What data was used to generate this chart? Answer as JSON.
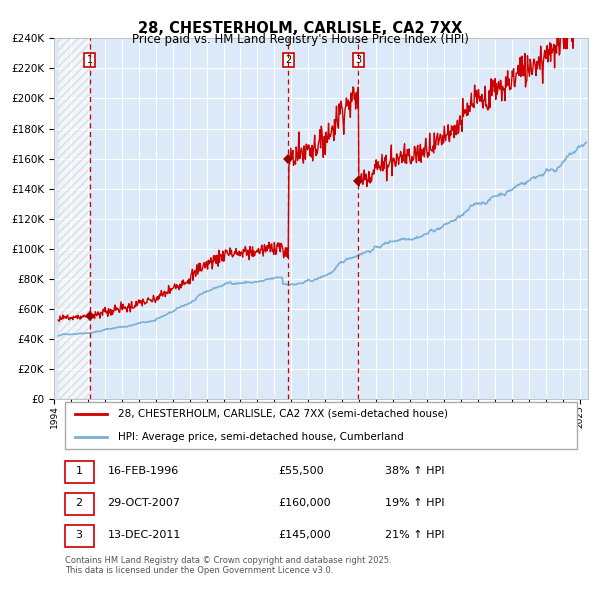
{
  "title": "28, CHESTERHOLM, CARLISLE, CA2 7XX",
  "subtitle": "Price paid vs. HM Land Registry's House Price Index (HPI)",
  "legend_line1": "28, CHESTERHOLM, CARLISLE, CA2 7XX (semi-detached house)",
  "legend_line2": "HPI: Average price, semi-detached house, Cumberland",
  "transactions": [
    {
      "num": 1,
      "date": "16-FEB-1996",
      "price": 55500,
      "pct": "38%",
      "dir": "↑"
    },
    {
      "num": 2,
      "date": "29-OCT-2007",
      "price": 160000,
      "pct": "19%",
      "dir": "↑"
    },
    {
      "num": 3,
      "date": "13-DEC-2011",
      "price": 145000,
      "pct": "21%",
      "dir": "↑"
    }
  ],
  "transaction_dates_decimal": [
    1996.12,
    2007.83,
    2011.95
  ],
  "transaction_prices": [
    55500,
    160000,
    145000
  ],
  "copyright": "Contains HM Land Registry data © Crown copyright and database right 2025.\nThis data is licensed under the Open Government Licence v3.0.",
  "ylim": [
    0,
    240000
  ],
  "yticks": [
    0,
    20000,
    40000,
    60000,
    80000,
    100000,
    120000,
    140000,
    160000,
    180000,
    200000,
    220000,
    240000
  ],
  "xmin": 1994.25,
  "xmax": 2025.5,
  "background_color": "#dce9f8",
  "plot_bg": "#dce9f8",
  "grid_color": "#ffffff",
  "red_line_color": "#cc0000",
  "blue_line_color": "#7ab0d4",
  "dashed_line_color": "#cc0000",
  "marker_color": "#990000"
}
